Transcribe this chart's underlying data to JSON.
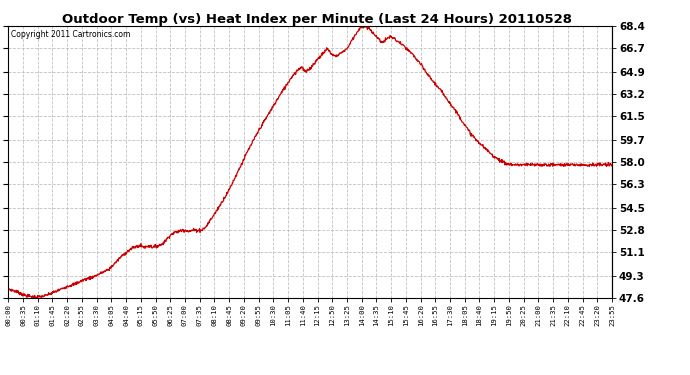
{
  "title": "Outdoor Temp (vs) Heat Index per Minute (Last 24 Hours) 20110528",
  "copyright": "Copyright 2011 Cartronics.com",
  "line_color": "#cc0000",
  "bg_color": "#ffffff",
  "plot_bg_color": "#ffffff",
  "grid_color": "#bbbbbb",
  "yticks": [
    47.6,
    49.3,
    51.1,
    52.8,
    54.5,
    56.3,
    58.0,
    59.7,
    61.5,
    63.2,
    64.9,
    66.7,
    68.4
  ],
  "xtick_labels": [
    "00:00",
    "00:35",
    "01:10",
    "01:45",
    "02:20",
    "02:55",
    "03:30",
    "04:05",
    "04:40",
    "05:15",
    "05:50",
    "06:25",
    "07:00",
    "07:35",
    "08:10",
    "08:45",
    "09:20",
    "09:55",
    "10:30",
    "11:05",
    "11:40",
    "12:15",
    "12:50",
    "13:25",
    "14:00",
    "14:35",
    "15:10",
    "15:45",
    "16:20",
    "16:55",
    "17:30",
    "18:05",
    "18:40",
    "19:15",
    "19:50",
    "20:25",
    "21:00",
    "21:35",
    "22:10",
    "22:45",
    "23:20",
    "23:55"
  ],
  "ymin": 47.6,
  "ymax": 68.4,
  "control_points": [
    [
      0,
      48.3
    ],
    [
      20,
      48.1
    ],
    [
      40,
      47.8
    ],
    [
      60,
      47.7
    ],
    [
      75,
      47.7
    ],
    [
      90,
      47.8
    ],
    [
      105,
      48.0
    ],
    [
      120,
      48.2
    ],
    [
      140,
      48.5
    ],
    [
      160,
      48.7
    ],
    [
      180,
      49.0
    ],
    [
      200,
      49.2
    ],
    [
      220,
      49.5
    ],
    [
      240,
      49.8
    ],
    [
      255,
      50.3
    ],
    [
      270,
      50.8
    ],
    [
      285,
      51.2
    ],
    [
      300,
      51.5
    ],
    [
      315,
      51.6
    ],
    [
      325,
      51.5
    ],
    [
      335,
      51.6
    ],
    [
      345,
      51.5
    ],
    [
      355,
      51.6
    ],
    [
      365,
      51.7
    ],
    [
      375,
      52.0
    ],
    [
      385,
      52.4
    ],
    [
      395,
      52.6
    ],
    [
      405,
      52.7
    ],
    [
      415,
      52.8
    ],
    [
      425,
      52.8
    ],
    [
      430,
      52.7
    ],
    [
      440,
      52.8
    ],
    [
      450,
      52.8
    ],
    [
      460,
      52.8
    ],
    [
      470,
      53.0
    ],
    [
      480,
      53.5
    ],
    [
      495,
      54.2
    ],
    [
      510,
      55.0
    ],
    [
      525,
      55.8
    ],
    [
      540,
      56.8
    ],
    [
      555,
      57.8
    ],
    [
      570,
      58.8
    ],
    [
      585,
      59.7
    ],
    [
      600,
      60.6
    ],
    [
      615,
      61.4
    ],
    [
      630,
      62.2
    ],
    [
      645,
      63.0
    ],
    [
      655,
      63.5
    ],
    [
      665,
      64.0
    ],
    [
      675,
      64.5
    ],
    [
      685,
      64.9
    ],
    [
      695,
      65.2
    ],
    [
      700,
      65.3
    ],
    [
      705,
      65.0
    ],
    [
      710,
      64.9
    ],
    [
      720,
      65.2
    ],
    [
      730,
      65.6
    ],
    [
      740,
      66.0
    ],
    [
      750,
      66.3
    ],
    [
      755,
      66.5
    ],
    [
      760,
      66.7
    ],
    [
      765,
      66.5
    ],
    [
      770,
      66.3
    ],
    [
      775,
      66.2
    ],
    [
      780,
      66.1
    ],
    [
      790,
      66.3
    ],
    [
      800,
      66.5
    ],
    [
      810,
      66.8
    ],
    [
      820,
      67.4
    ],
    [
      830,
      67.9
    ],
    [
      840,
      68.3
    ],
    [
      850,
      68.4
    ],
    [
      860,
      68.2
    ],
    [
      870,
      67.9
    ],
    [
      880,
      67.5
    ],
    [
      890,
      67.2
    ],
    [
      895,
      67.2
    ],
    [
      900,
      67.4
    ],
    [
      910,
      67.6
    ],
    [
      918,
      67.5
    ],
    [
      925,
      67.3
    ],
    [
      935,
      67.1
    ],
    [
      945,
      66.8
    ],
    [
      955,
      66.5
    ],
    [
      965,
      66.2
    ],
    [
      975,
      65.8
    ],
    [
      985,
      65.4
    ],
    [
      995,
      64.9
    ],
    [
      1005,
      64.5
    ],
    [
      1015,
      64.1
    ],
    [
      1025,
      63.7
    ],
    [
      1035,
      63.3
    ],
    [
      1045,
      62.9
    ],
    [
      1055,
      62.4
    ],
    [
      1065,
      62.0
    ],
    [
      1075,
      61.5
    ],
    [
      1085,
      61.0
    ],
    [
      1095,
      60.5
    ],
    [
      1105,
      60.1
    ],
    [
      1115,
      59.7
    ],
    [
      1125,
      59.4
    ],
    [
      1135,
      59.1
    ],
    [
      1145,
      58.8
    ],
    [
      1155,
      58.5
    ],
    [
      1165,
      58.3
    ],
    [
      1175,
      58.1
    ],
    [
      1185,
      57.9
    ],
    [
      1200,
      57.8
    ],
    [
      1439,
      57.8
    ]
  ]
}
